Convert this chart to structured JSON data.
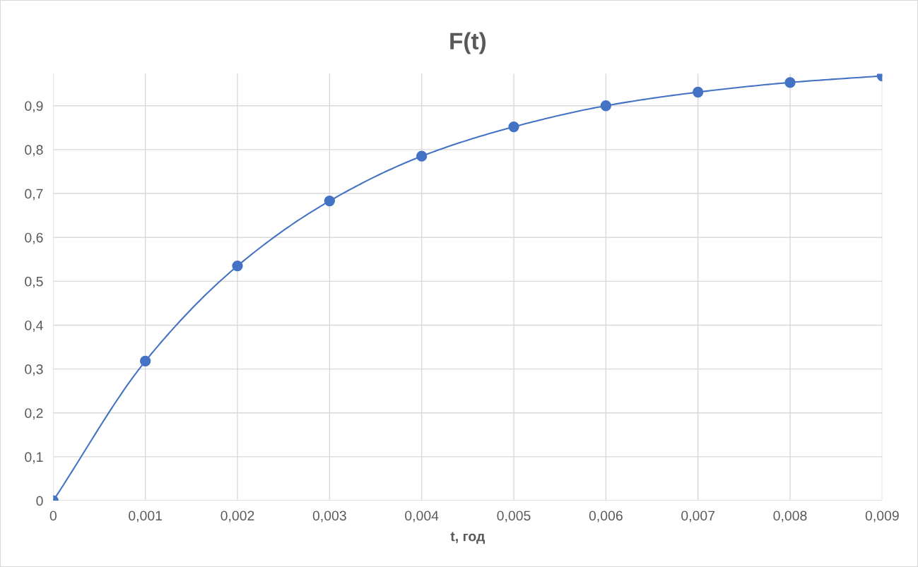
{
  "chart_data": {
    "type": "line",
    "title": "F(t)",
    "xlabel": "t, год",
    "x": [
      0,
      0.001,
      0.002,
      0.003,
      0.004,
      0.005,
      0.006,
      0.007,
      0.008,
      0.009
    ],
    "series": [
      {
        "color": "#4472c4",
        "values": [
          0,
          0.318,
          0.535,
          0.683,
          0.785,
          0.852,
          0.9,
          0.931,
          0.953,
          0.968
        ]
      }
    ],
    "xlim": [
      0,
      0.009
    ],
    "ylim": [
      0,
      0.973
    ],
    "xticks": [
      0,
      {
        "value": 0.001,
        "label": "0,001"
      },
      {
        "value": 0.002,
        "label": "0,002"
      },
      {
        "value": 0.003,
        "label": "0,003"
      },
      {
        "value": 0.004,
        "label": "0,004"
      },
      {
        "value": 0.005,
        "label": "0,005"
      },
      {
        "value": 0.006,
        "label": "0,006"
      },
      {
        "value": 0.007,
        "label": "0,007"
      },
      {
        "value": 0.008,
        "label": "0,008"
      },
      {
        "value": 0.009,
        "label": "0,009"
      }
    ],
    "yticks": [
      0,
      {
        "value": 0.1,
        "label": "0,1"
      },
      {
        "value": 0.2,
        "label": "0,2"
      },
      {
        "value": 0.3,
        "label": "0,3"
      },
      {
        "value": 0.4,
        "label": "0,4"
      },
      {
        "value": 0.5,
        "label": "0,5"
      },
      {
        "value": 0.6,
        "label": "0,6"
      },
      {
        "value": 0.7,
        "label": "0,7"
      },
      {
        "value": 0.8,
        "label": "0,8"
      },
      {
        "value": 0.9,
        "label": "0,9"
      }
    ],
    "grid": true,
    "marker": "circle",
    "line_style": "solid"
  }
}
